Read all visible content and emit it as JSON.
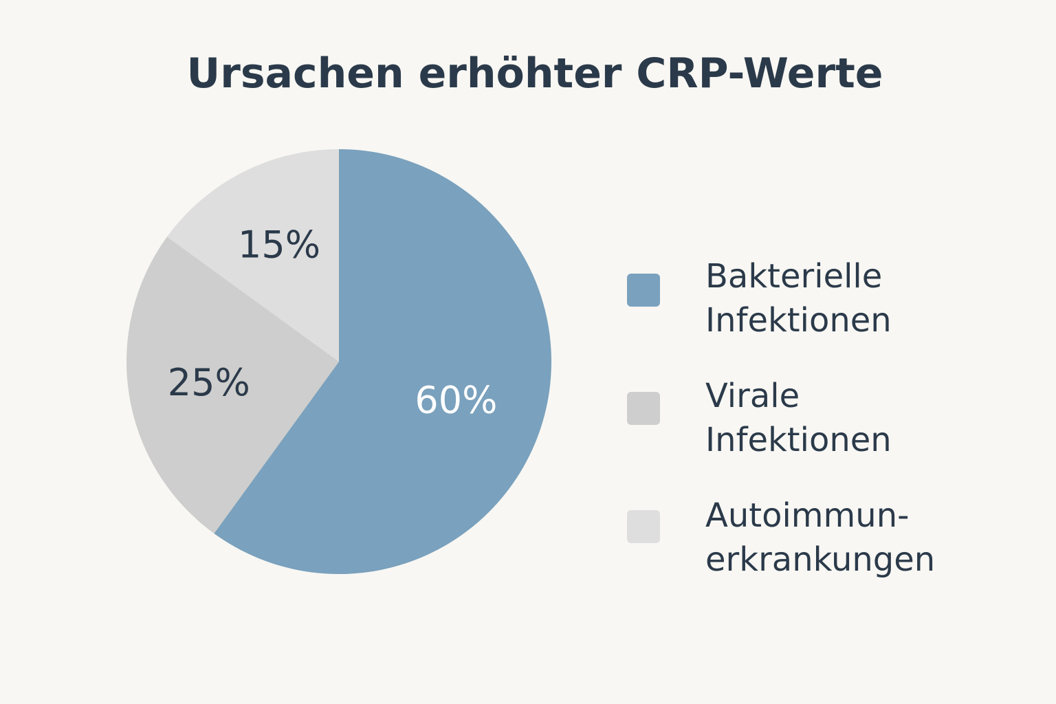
{
  "chart_data": {
    "type": "pie",
    "title": "Ursachen erhöhter CRP-Werte",
    "slices": [
      {
        "label": "Bakterielle\nInfektionen",
        "value": 60,
        "display": "60%",
        "color": "#7aa1bd",
        "text_color": "#ffffff"
      },
      {
        "label": "Virale\nInfektionen",
        "value": 25,
        "display": "25%",
        "color": "#cdcecd",
        "text_color": "#2b3a4a"
      },
      {
        "label": "Autoimmun-\nerkrankungen",
        "value": 15,
        "display": "15%",
        "color": "#dedede",
        "text_color": "#2b3a4a"
      }
    ],
    "legend_position": "right",
    "start_angle": "top, clockwise"
  }
}
